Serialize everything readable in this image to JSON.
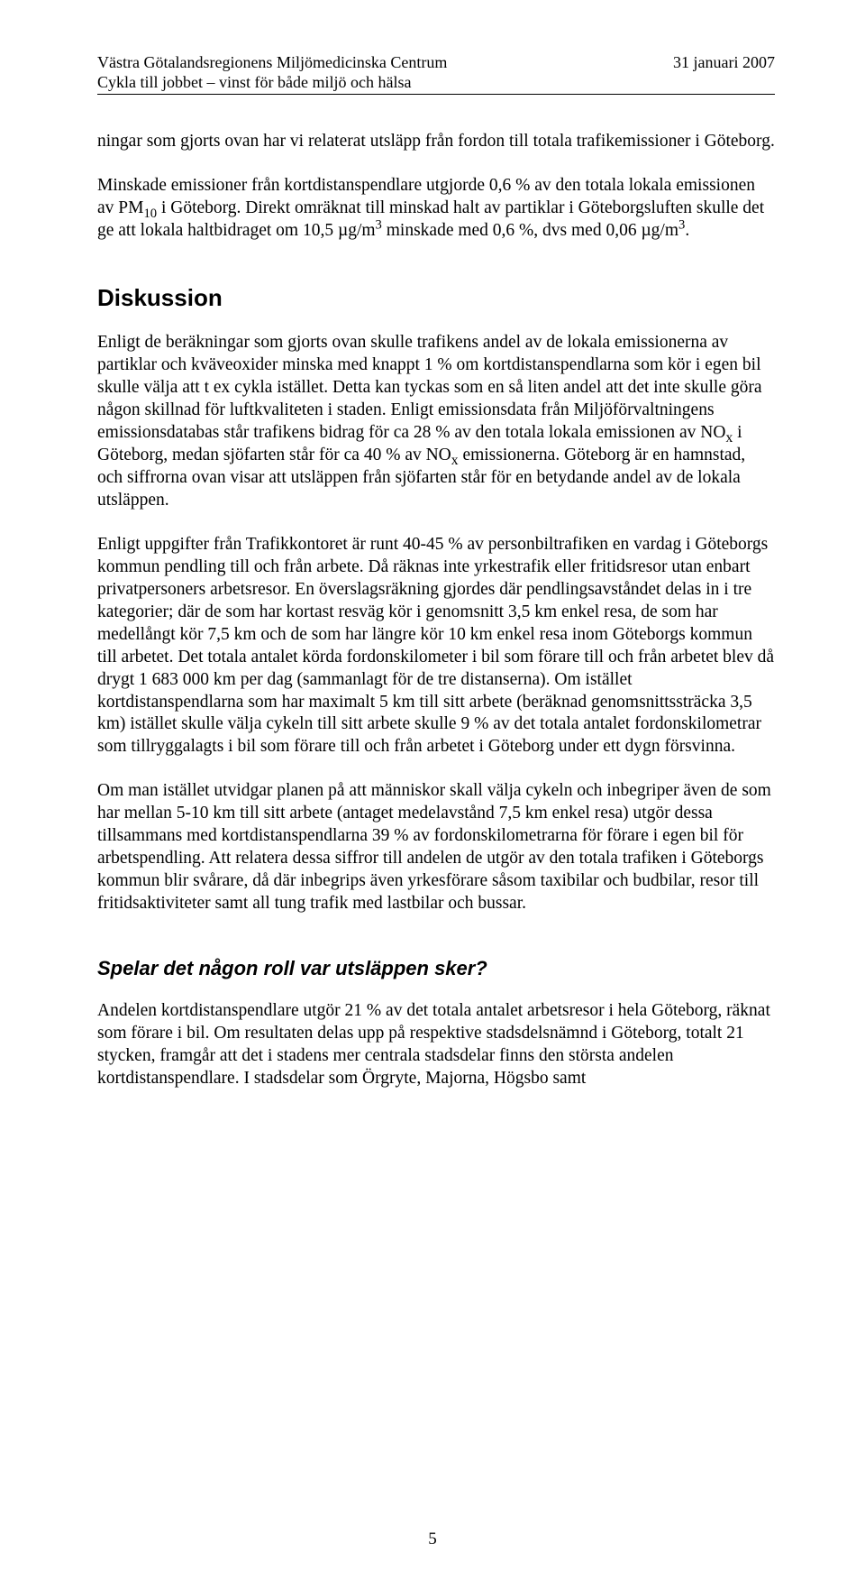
{
  "header": {
    "org": "Västra Götalandsregionens Miljömedicinska Centrum",
    "date": "31 januari 2007",
    "subtitle": "Cykla till jobbet – vinst för både miljö och hälsa"
  },
  "body": {
    "p1": "ningar som gjorts ovan har vi relaterat utsläpp från fordon till totala trafikemissioner i Göteborg.",
    "p2a": "Minskade emissioner från kortdistanspendlare utgjorde 0,6 % av den totala lokala emissionen av PM",
    "p2b": " i Göteborg. Direkt omräknat till minskad halt av partiklar i Göteborgsluften skulle det ge att lokala haltbidraget om 10,5 µg/m",
    "p2c": " minskade med 0,6 %, dvs med 0,06 µg/m",
    "p2d": ".",
    "h2": "Diskussion",
    "p3a": "Enligt de beräkningar som gjorts ovan skulle trafikens andel av de lokala emissionerna av partiklar och kväveoxider minska med knappt 1 % om kortdistanspendlarna som kör i egen bil skulle välja att t ex cykla istället. Detta kan tyckas som en så liten andel att det inte skulle göra någon skillnad för luftkvaliteten i staden. Enligt emissionsdata från Miljöförvaltningens emissionsdatabas står trafikens bidrag för ca 28 % av den totala lokala emissionen av NO",
    "p3b": " i Göteborg, medan sjöfarten står för ca 40 % av NO",
    "p3c": " emissionerna. Göteborg är en hamnstad, och siffrorna ovan visar att utsläppen från sjöfarten står för en betydande andel av de lokala utsläppen.",
    "p4": "Enligt uppgifter från Trafikkontoret är runt 40-45 % av personbiltrafiken en vardag i Göteborgs kommun pendling till och från arbete. Då räknas inte yrkestrafik eller fritidsresor utan enbart privatpersoners arbetsresor. En överslagsräkning gjordes där pendlingsavståndet delas in i tre kategorier; där de som har kortast resväg kör i genomsnitt 3,5 km enkel resa, de som har medellångt kör 7,5 km och de som har längre kör 10 km enkel resa inom Göteborgs kommun till arbetet. Det totala antalet körda fordonskilometer i bil som förare till och från arbetet blev då drygt 1 683 000 km per dag (sammanlagt för de tre distanserna). Om istället kortdistanspendlarna som har maximalt 5 km till sitt arbete (beräknad genomsnittssträcka 3,5 km) istället skulle välja cykeln till sitt arbete skulle 9 % av det totala antalet fordonskilometrar som tillryggalagts i bil som förare till och från arbetet i Göteborg under ett dygn försvinna.",
    "p5": "Om man istället utvidgar planen på att människor skall välja cykeln och inbegriper även de som har mellan 5-10 km till sitt arbete (antaget medelavstånd 7,5 km enkel resa) utgör dessa tillsammans med kortdistanspendlarna 39 % av fordonskilometrarna för förare i egen bil för arbetspendling. Att relatera dessa siffror till andelen de utgör av den totala trafiken i Göteborgs kommun blir svårare, då där inbegrips även yrkesförare såsom taxibilar och budbilar, resor till fritidsaktiviteter samt all tung trafik med lastbilar och bussar.",
    "h3": "Spelar det någon roll var utsläppen sker?",
    "p6": "Andelen kortdistanspendlare utgör 21 % av det totala antalet arbetsresor i hela Göteborg, räknat som förare i bil. Om resultaten delas upp på respektive stadsdelsnämnd i Göteborg, totalt 21 stycken, framgår att det i stadens mer centrala stadsdelar finns den största andelen kortdistanspendlare. I stadsdelar som Örgryte, Majorna, Högsbo samt"
  },
  "pagenum": "5",
  "subscripts": {
    "ten": "10",
    "three": "3",
    "x": "x"
  }
}
